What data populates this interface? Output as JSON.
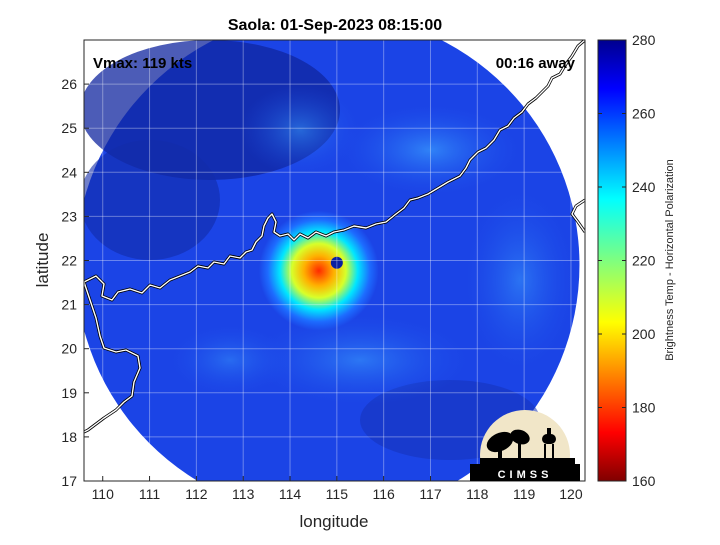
{
  "title": "Saola: 01-Sep-2023 08:15:00",
  "vmax_label": "Vmax: 119 kts",
  "time_label": "00:16 away",
  "chart_data": {
    "type": "heatmap",
    "xlabel": "longitude",
    "ylabel": "latitude",
    "xlim": [
      109.6,
      120.3
    ],
    "ylim": [
      17.0,
      27.0
    ],
    "xticks": [
      "110",
      "111",
      "112",
      "113",
      "114",
      "115",
      "116",
      "117",
      "118",
      "119",
      "120"
    ],
    "yticks": [
      "17",
      "18",
      "19",
      "20",
      "21",
      "22",
      "23",
      "24",
      "25",
      "26"
    ],
    "grid": true,
    "colorbar": {
      "label": "Brightness Temp - Horizontal Polarization",
      "range": [
        160,
        280
      ],
      "ticks": [
        "160",
        "180",
        "200",
        "220",
        "240",
        "260",
        "280"
      ],
      "colormap": "jet"
    },
    "swath_center": [
      114.8,
      21.9
    ],
    "storm_center": [
      115.0,
      21.95
    ],
    "eye_min_temp": 185
  },
  "logo": {
    "text": "CIMSS"
  },
  "colors": {
    "coastline": "#ffffff",
    "background": "#ffffff",
    "axis": "#262626"
  }
}
